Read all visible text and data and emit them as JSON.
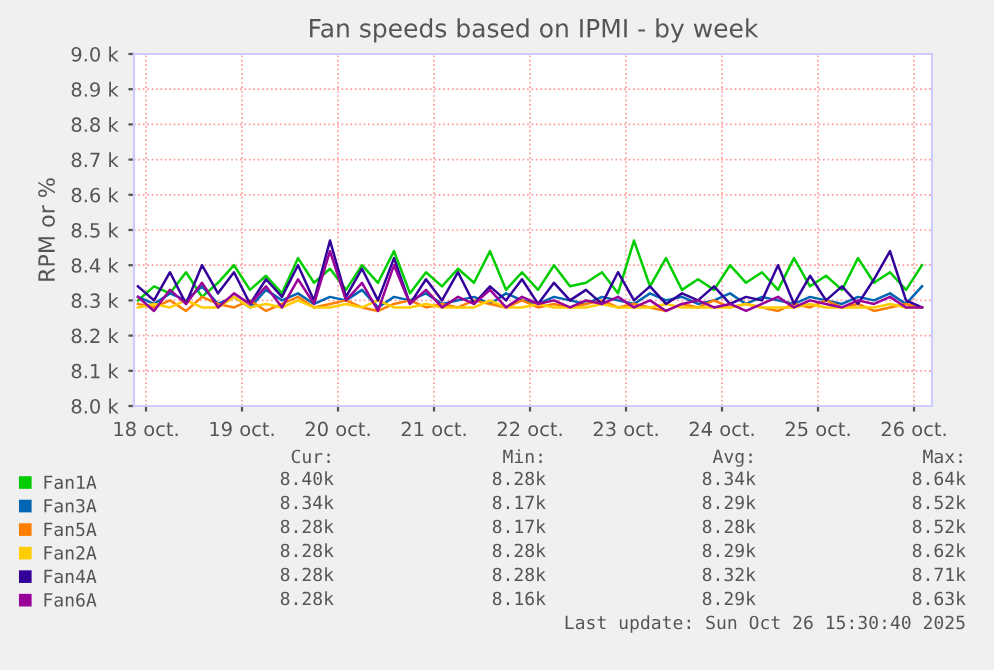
{
  "chart_data": {
    "type": "line",
    "title": "Fan speeds based on IPMI - by week",
    "ylabel": "RPM or %",
    "x": [
      "2025-10-17T22:00",
      "2025-10-18T02:00",
      "2025-10-18T06:00",
      "2025-10-18T10:00",
      "2025-10-18T14:00",
      "2025-10-18T18:00",
      "2025-10-18T22:00",
      "2025-10-19T02:00",
      "2025-10-19T06:00",
      "2025-10-19T10:00",
      "2025-10-19T14:00",
      "2025-10-19T18:00",
      "2025-10-19T22:00",
      "2025-10-20T02:00",
      "2025-10-20T06:00",
      "2025-10-20T10:00",
      "2025-10-20T14:00",
      "2025-10-20T18:00",
      "2025-10-20T22:00",
      "2025-10-21T02:00",
      "2025-10-21T06:00",
      "2025-10-21T10:00",
      "2025-10-21T14:00",
      "2025-10-21T18:00",
      "2025-10-21T22:00",
      "2025-10-22T02:00",
      "2025-10-22T06:00",
      "2025-10-22T10:00",
      "2025-10-22T14:00",
      "2025-10-22T18:00",
      "2025-10-22T22:00",
      "2025-10-23T02:00",
      "2025-10-23T06:00",
      "2025-10-23T10:00",
      "2025-10-23T14:00",
      "2025-10-23T18:00",
      "2025-10-23T22:00",
      "2025-10-24T02:00",
      "2025-10-24T06:00",
      "2025-10-24T10:00",
      "2025-10-24T14:00",
      "2025-10-24T18:00",
      "2025-10-24T22:00",
      "2025-10-25T02:00",
      "2025-10-25T06:00",
      "2025-10-25T10:00",
      "2025-10-25T14:00",
      "2025-10-25T18:00",
      "2025-10-25T22:00",
      "2025-10-26T02:00"
    ],
    "series": [
      {
        "name": "Fan1A",
        "color": "#00cc00",
        "values": [
          8300,
          8340,
          8320,
          8380,
          8310,
          8350,
          8400,
          8330,
          8370,
          8320,
          8420,
          8350,
          8390,
          8330,
          8400,
          8350,
          8440,
          8320,
          8380,
          8340,
          8390,
          8350,
          8440,
          8330,
          8380,
          8330,
          8400,
          8340,
          8350,
          8380,
          8320,
          8470,
          8340,
          8420,
          8330,
          8360,
          8330,
          8400,
          8350,
          8380,
          8330,
          8420,
          8340,
          8370,
          8330,
          8420,
          8350,
          8380,
          8330,
          8400
        ]
      },
      {
        "name": "Fan3A",
        "color": "#0066b3",
        "values": [
          8310,
          8290,
          8320,
          8300,
          8340,
          8290,
          8310,
          8280,
          8330,
          8300,
          8320,
          8290,
          8310,
          8300,
          8330,
          8280,
          8310,
          8300,
          8320,
          8290,
          8300,
          8310,
          8290,
          8320,
          8300,
          8290,
          8310,
          8300,
          8290,
          8310,
          8300,
          8290,
          8320,
          8300,
          8310,
          8290,
          8300,
          8320,
          8290,
          8310,
          8300,
          8290,
          8310,
          8300,
          8290,
          8310,
          8300,
          8320,
          8290,
          8340
        ]
      },
      {
        "name": "Fan5A",
        "color": "#ff8000",
        "values": [
          8290,
          8280,
          8300,
          8270,
          8310,
          8290,
          8280,
          8300,
          8270,
          8290,
          8310,
          8280,
          8290,
          8300,
          8280,
          8270,
          8290,
          8300,
          8280,
          8290,
          8280,
          8300,
          8290,
          8280,
          8300,
          8280,
          8290,
          8280,
          8290,
          8300,
          8280,
          8290,
          8280,
          8270,
          8290,
          8280,
          8300,
          8280,
          8290,
          8280,
          8270,
          8290,
          8280,
          8300,
          8280,
          8290,
          8270,
          8280,
          8290,
          8280
        ]
      },
      {
        "name": "Fan2A",
        "color": "#ffcc00",
        "values": [
          8280,
          8290,
          8280,
          8300,
          8280,
          8280,
          8310,
          8280,
          8290,
          8280,
          8300,
          8280,
          8280,
          8290,
          8280,
          8300,
          8280,
          8280,
          8290,
          8280,
          8280,
          8280,
          8300,
          8280,
          8280,
          8290,
          8280,
          8280,
          8280,
          8290,
          8280,
          8280,
          8280,
          8290,
          8280,
          8280,
          8280,
          8280,
          8290,
          8280,
          8280,
          8280,
          8290,
          8280,
          8280,
          8280,
          8280,
          8290,
          8280,
          8280
        ]
      },
      {
        "name": "Fan4A",
        "color": "#330099",
        "values": [
          8340,
          8300,
          8380,
          8290,
          8400,
          8320,
          8380,
          8290,
          8360,
          8310,
          8400,
          8300,
          8470,
          8310,
          8390,
          8300,
          8420,
          8290,
          8360,
          8300,
          8380,
          8290,
          8340,
          8300,
          8360,
          8290,
          8350,
          8300,
          8330,
          8290,
          8380,
          8300,
          8340,
          8290,
          8320,
          8300,
          8340,
          8290,
          8310,
          8300,
          8400,
          8290,
          8370,
          8300,
          8340,
          8290,
          8360,
          8440,
          8300,
          8280
        ]
      },
      {
        "name": "Fan6A",
        "color": "#990099",
        "values": [
          8310,
          8270,
          8330,
          8290,
          8350,
          8280,
          8320,
          8290,
          8340,
          8280,
          8360,
          8290,
          8440,
          8300,
          8350,
          8270,
          8400,
          8290,
          8330,
          8280,
          8310,
          8290,
          8330,
          8280,
          8310,
          8290,
          8300,
          8280,
          8300,
          8290,
          8310,
          8280,
          8300,
          8270,
          8290,
          8300,
          8280,
          8290,
          8270,
          8290,
          8310,
          8280,
          8300,
          8290,
          8280,
          8300,
          8290,
          8310,
          8280,
          8280
        ]
      }
    ],
    "xlim": [
      "2025-10-17T21:00",
      "2025-10-26T04:30"
    ],
    "xticks": [
      {
        "value": "2025-10-18",
        "label": "18 oct."
      },
      {
        "value": "2025-10-19",
        "label": "19 oct."
      },
      {
        "value": "2025-10-20",
        "label": "20 oct."
      },
      {
        "value": "2025-10-21",
        "label": "21 oct."
      },
      {
        "value": "2025-10-22",
        "label": "22 oct."
      },
      {
        "value": "2025-10-23",
        "label": "23 oct."
      },
      {
        "value": "2025-10-24",
        "label": "24 oct."
      },
      {
        "value": "2025-10-25",
        "label": "25 oct."
      },
      {
        "value": "2025-10-26",
        "label": "26 oct."
      }
    ],
    "ylim": [
      8000,
      9000
    ],
    "yticks": [
      {
        "value": 8000,
        "label": "8.0 k"
      },
      {
        "value": 8100,
        "label": "8.1 k"
      },
      {
        "value": 8200,
        "label": "8.2 k"
      },
      {
        "value": 8300,
        "label": "8.3 k"
      },
      {
        "value": 8400,
        "label": "8.4 k"
      },
      {
        "value": 8500,
        "label": "8.5 k"
      },
      {
        "value": 8600,
        "label": "8.6 k"
      },
      {
        "value": 8700,
        "label": "8.7 k"
      },
      {
        "value": 8800,
        "label": "8.8 k"
      },
      {
        "value": 8900,
        "label": "8.9 k"
      },
      {
        "value": 9000,
        "label": "9.0 k"
      }
    ],
    "grid": true,
    "legend": "bottom",
    "marker": "none",
    "line_style": "solid",
    "annotations": [
      "Cur:",
      "Min:",
      "Avg:",
      "Max:",
      "8.40k",
      "8.28k",
      "8.34k",
      "8.64k",
      "8.34k",
      "8.17k",
      "8.29k",
      "8.52k",
      "8.28k",
      "8.17k",
      "8.28k",
      "8.52k",
      "8.28k",
      "8.28k",
      "8.29k",
      "8.62k",
      "8.28k",
      "8.28k",
      "8.32k",
      "8.71k",
      "8.28k",
      "8.16k",
      "8.29k",
      "8.63k",
      "Last update: Sun Oct 26 15:30:40 2025"
    ]
  }
}
